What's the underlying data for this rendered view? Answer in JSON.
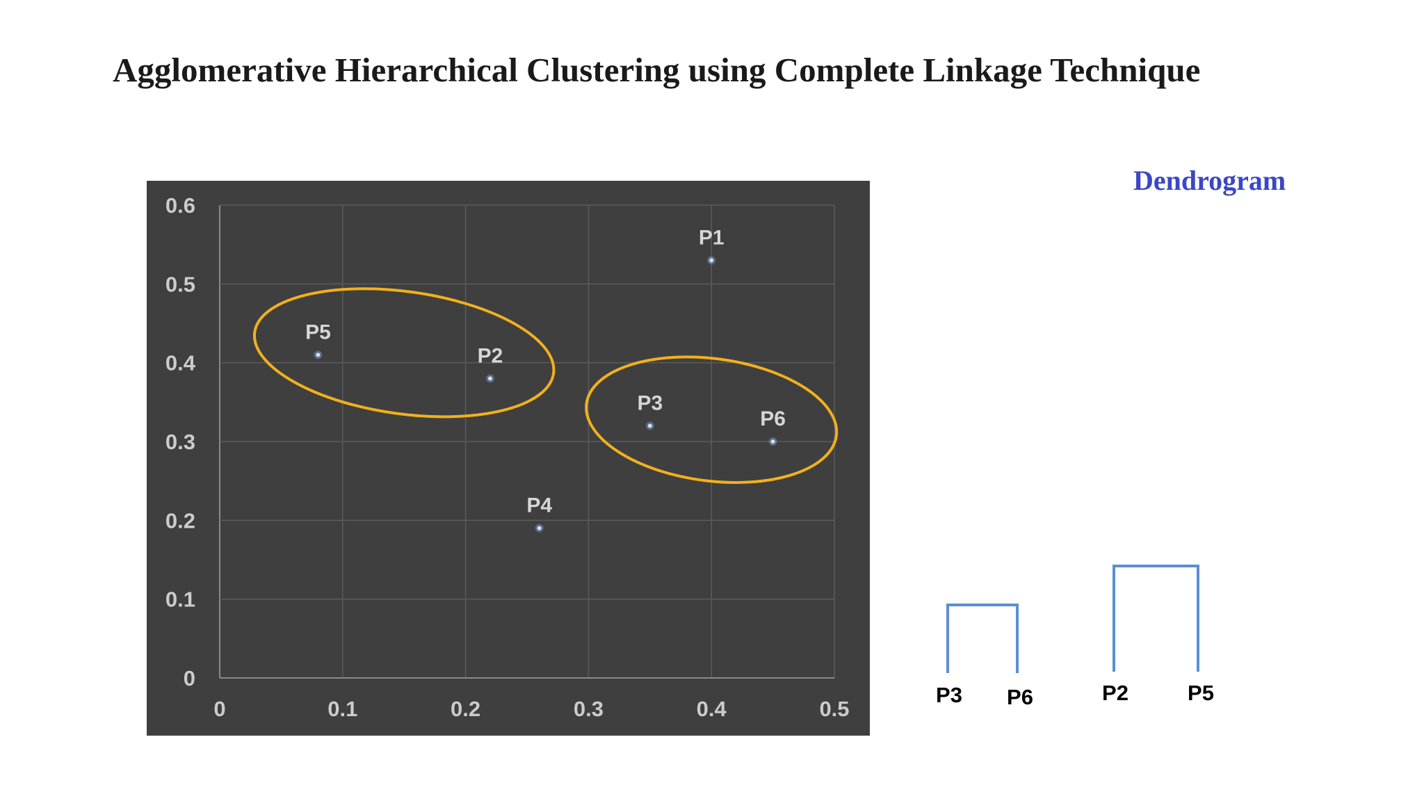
{
  "slide": {
    "title": "Agglomerative Hierarchical Clustering using Complete Linkage Technique"
  },
  "dendrogram": {
    "title": "Dendrogram",
    "title_color": "#3b47c4",
    "line_color": "#5b8fd0",
    "merges": [
      {
        "left": "P3",
        "right": "P6"
      },
      {
        "left": "P2",
        "right": "P5"
      }
    ]
  },
  "chart_data": {
    "type": "scatter",
    "title": "",
    "xlabel": "",
    "ylabel": "",
    "xlim": [
      0,
      0.5
    ],
    "ylim": [
      0,
      0.6
    ],
    "x_ticks": [
      "0",
      "0.1",
      "0.2",
      "0.3",
      "0.4",
      "0.5"
    ],
    "y_ticks": [
      "0",
      "0.1",
      "0.2",
      "0.3",
      "0.4",
      "0.5",
      "0.6"
    ],
    "grid": true,
    "background_color": "#3f3f3f",
    "point_color": "#8fb8ff",
    "cluster_color": "#f2b01e",
    "points": [
      {
        "label": "P1",
        "x": 0.4,
        "y": 0.53
      },
      {
        "label": "P2",
        "x": 0.22,
        "y": 0.38
      },
      {
        "label": "P3",
        "x": 0.35,
        "y": 0.32
      },
      {
        "label": "P4",
        "x": 0.26,
        "y": 0.19
      },
      {
        "label": "P5",
        "x": 0.08,
        "y": 0.41
      },
      {
        "label": "P6",
        "x": 0.45,
        "y": 0.3
      }
    ],
    "clusters": [
      {
        "members": [
          "P5",
          "P2"
        ]
      },
      {
        "members": [
          "P3",
          "P6"
        ]
      }
    ]
  }
}
